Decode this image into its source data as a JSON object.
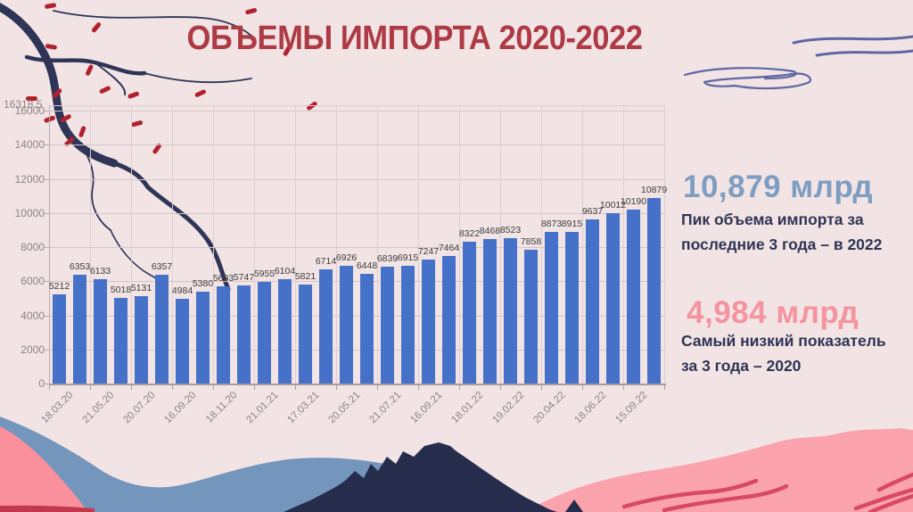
{
  "title": "ОБЪЕМЫ ИМПОРТА 2020-2022",
  "callouts": {
    "peak": {
      "value": "10,879 млрд",
      "desc": "Пик объема импорта за\nпоследние 3 года – в 2022"
    },
    "low": {
      "value": "4,984 млрд",
      "desc": "Самый низкий показатель\nза 3 года – 2020"
    }
  },
  "colors": {
    "background": "#f2e4e4",
    "title": "#ad3a45",
    "bar": "#4571c8",
    "peak_text": "#7d9ec2",
    "low_text": "#f5939f",
    "body_text": "#2e3454"
  },
  "chart_data": {
    "type": "bar",
    "title": "ОБЪЕМЫ ИМПОРТА 2020-2022",
    "values": [
      5212,
      6353,
      6133,
      5018,
      5131,
      6357,
      4984,
      5380,
      5693,
      5747,
      5955,
      6104,
      5821,
      6714,
      6926,
      6448,
      6839,
      6915,
      7247,
      7464,
      8322,
      8468,
      8523,
      7858,
      8873,
      8915,
      9637,
      10012,
      10190,
      10879
    ],
    "x_labels": [
      "18.03.20",
      "",
      "21.05.20",
      "",
      "20.07.20",
      "",
      "16.09.20",
      "",
      "18.11.20",
      "",
      "21.01.21",
      "",
      "17.03.21",
      "",
      "20.05.21",
      "",
      "21.07.21",
      "",
      "16.09.21",
      "",
      "18.01.22",
      "",
      "19.02.22",
      "",
      "20.04.22",
      "",
      "18.06.22",
      "",
      "15.09.22",
      ""
    ],
    "y_ticks": [
      0,
      2000,
      4000,
      6000,
      8000,
      10000,
      12000,
      14000,
      16000
    ],
    "y_max_label": "16318.5",
    "ylim": [
      0,
      16318.5
    ],
    "xlabel": "",
    "ylabel": "",
    "grid": true,
    "legend": "none",
    "bar_color": "#4571c8"
  }
}
